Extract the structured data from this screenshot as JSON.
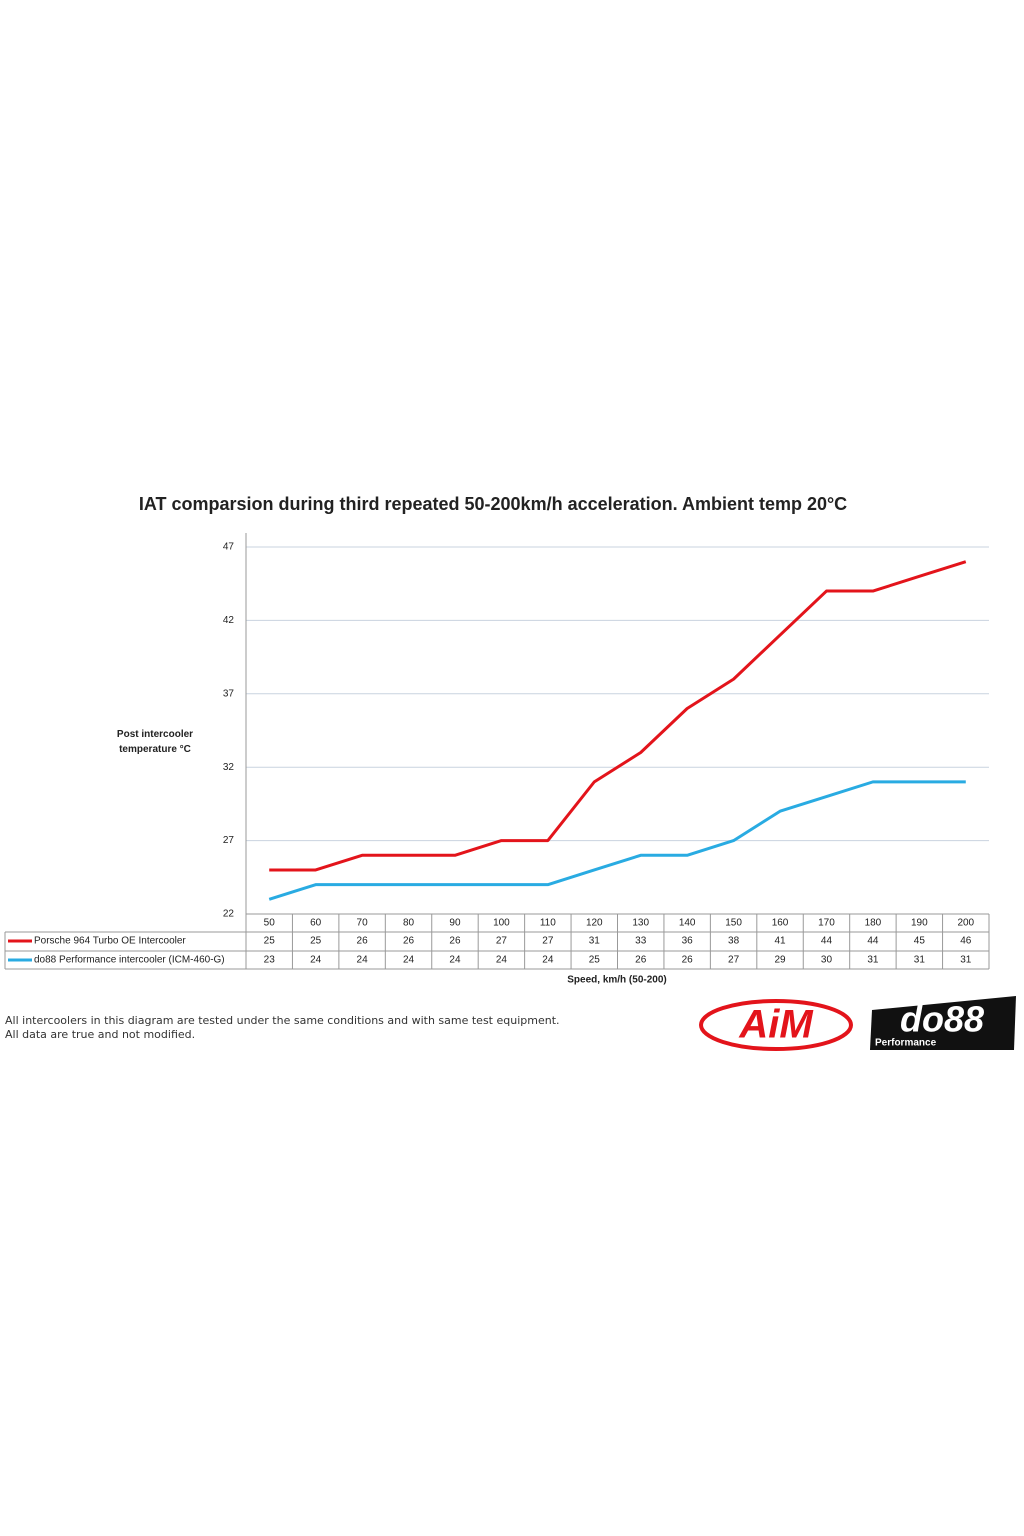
{
  "chart_data": {
    "type": "line",
    "title": "IAT comparsion during third repeated 50-200km/h acceleration. Ambient temp 20°C",
    "y_label": "Post intercooler temperature °C",
    "x_label": "Speed, km/h (50-200)",
    "x": [
      50,
      60,
      70,
      80,
      90,
      100,
      110,
      120,
      130,
      140,
      150,
      160,
      170,
      180,
      190,
      200
    ],
    "xlim": [
      45,
      205
    ],
    "ylim": [
      22,
      47
    ],
    "yticks": [
      22,
      27,
      32,
      37,
      42,
      47
    ],
    "grid": true,
    "series": [
      {
        "name": "Porsche 964 Turbo OE Intercooler",
        "color": "#e3141b",
        "values": [
          25,
          25,
          26,
          26,
          26,
          27,
          27,
          31,
          33,
          36,
          38,
          41,
          44,
          44,
          45,
          46
        ]
      },
      {
        "name": "do88 Performance intercooler (ICM-460-G)",
        "color": "#29abe2",
        "values": [
          23,
          24,
          24,
          24,
          24,
          24,
          24,
          25,
          26,
          26,
          27,
          29,
          30,
          31,
          31,
          31
        ]
      }
    ]
  },
  "footer": {
    "notes": [
      "All intercoolers in this diagram are tested under the same conditions and with same test equipment.",
      "All data are true and not modified."
    ],
    "logos": {
      "aim": "AiM",
      "do88": "do88",
      "do88_sub": "Performance"
    }
  }
}
